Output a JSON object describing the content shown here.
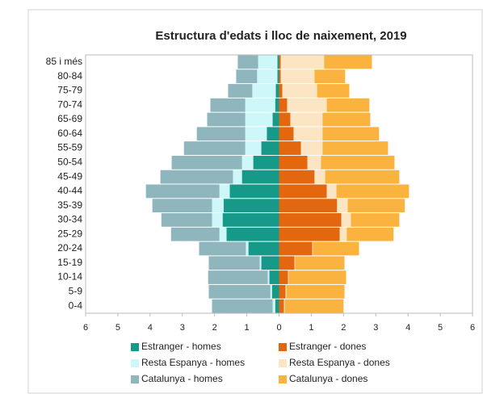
{
  "chart_data": {
    "type": "pyramid",
    "title": "Estructura d'edats i lloc de naixement, 2019",
    "categories": [
      "85 i més",
      "80-84",
      "75-79",
      "70-74",
      "65-69",
      "60-64",
      "55-59",
      "50-54",
      "45-49",
      "40-44",
      "35-39",
      "30-34",
      "25-29",
      "20-24",
      "15-19",
      "10-14",
      "5-9",
      "0-4"
    ],
    "series": [
      {
        "name": "Estranger - homes",
        "color": "#17998a",
        "values": [
          -0.05,
          -0.05,
          -0.1,
          -0.12,
          -0.2,
          -0.38,
          -0.55,
          -0.8,
          -1.15,
          -1.53,
          -1.72,
          -1.75,
          -1.63,
          -0.95,
          -0.55,
          -0.3,
          -0.22,
          -0.12
        ]
      },
      {
        "name": "Estranger - dones",
        "color": "#e2670e",
        "values": [
          0.05,
          0.05,
          0.1,
          0.25,
          0.35,
          0.45,
          0.68,
          0.88,
          1.1,
          1.48,
          1.8,
          1.93,
          1.88,
          1.03,
          0.48,
          0.28,
          0.2,
          0.15
        ]
      },
      {
        "name": "Resta Espanya - homes",
        "color": "#cdf7f9",
        "values": [
          -0.6,
          -0.63,
          -0.73,
          -0.93,
          -0.85,
          -0.67,
          -0.5,
          -0.35,
          -0.28,
          -0.32,
          -0.36,
          -0.33,
          -0.22,
          -0.08,
          -0.05,
          -0.05,
          -0.05,
          -0.08
        ]
      },
      {
        "name": "Resta Espanya - dones",
        "color": "#fce5c2",
        "values": [
          1.35,
          1.05,
          1.08,
          1.23,
          1.0,
          0.9,
          0.67,
          0.42,
          0.33,
          0.3,
          0.33,
          0.3,
          0.22,
          0.02,
          0.02,
          0.02,
          0.03,
          0.03
        ]
      },
      {
        "name": "Catalunya - homes",
        "color": "#8fb6bc",
        "values": [
          -0.63,
          -0.65,
          -0.75,
          -1.08,
          -1.18,
          -1.5,
          -1.9,
          -2.18,
          -2.25,
          -2.28,
          -1.85,
          -1.57,
          -1.5,
          -1.45,
          -1.58,
          -1.85,
          -1.91,
          -1.88
        ]
      },
      {
        "name": "Catalunya - dones",
        "color": "#fbb33f",
        "values": [
          1.48,
          0.95,
          1.0,
          1.32,
          1.48,
          1.75,
          2.03,
          2.28,
          2.3,
          2.25,
          1.77,
          1.5,
          1.45,
          1.43,
          1.53,
          1.78,
          1.8,
          1.82
        ]
      }
    ],
    "xlim": [
      -6,
      6
    ],
    "xticks": [
      {
        "value": -6,
        "label": "6"
      },
      {
        "value": -5,
        "label": "5"
      },
      {
        "value": -4,
        "label": "4"
      },
      {
        "value": -3,
        "label": "3"
      },
      {
        "value": -2,
        "label": "2"
      },
      {
        "value": -1,
        "label": "1"
      },
      0,
      1,
      2,
      3,
      4,
      5,
      6
    ]
  }
}
